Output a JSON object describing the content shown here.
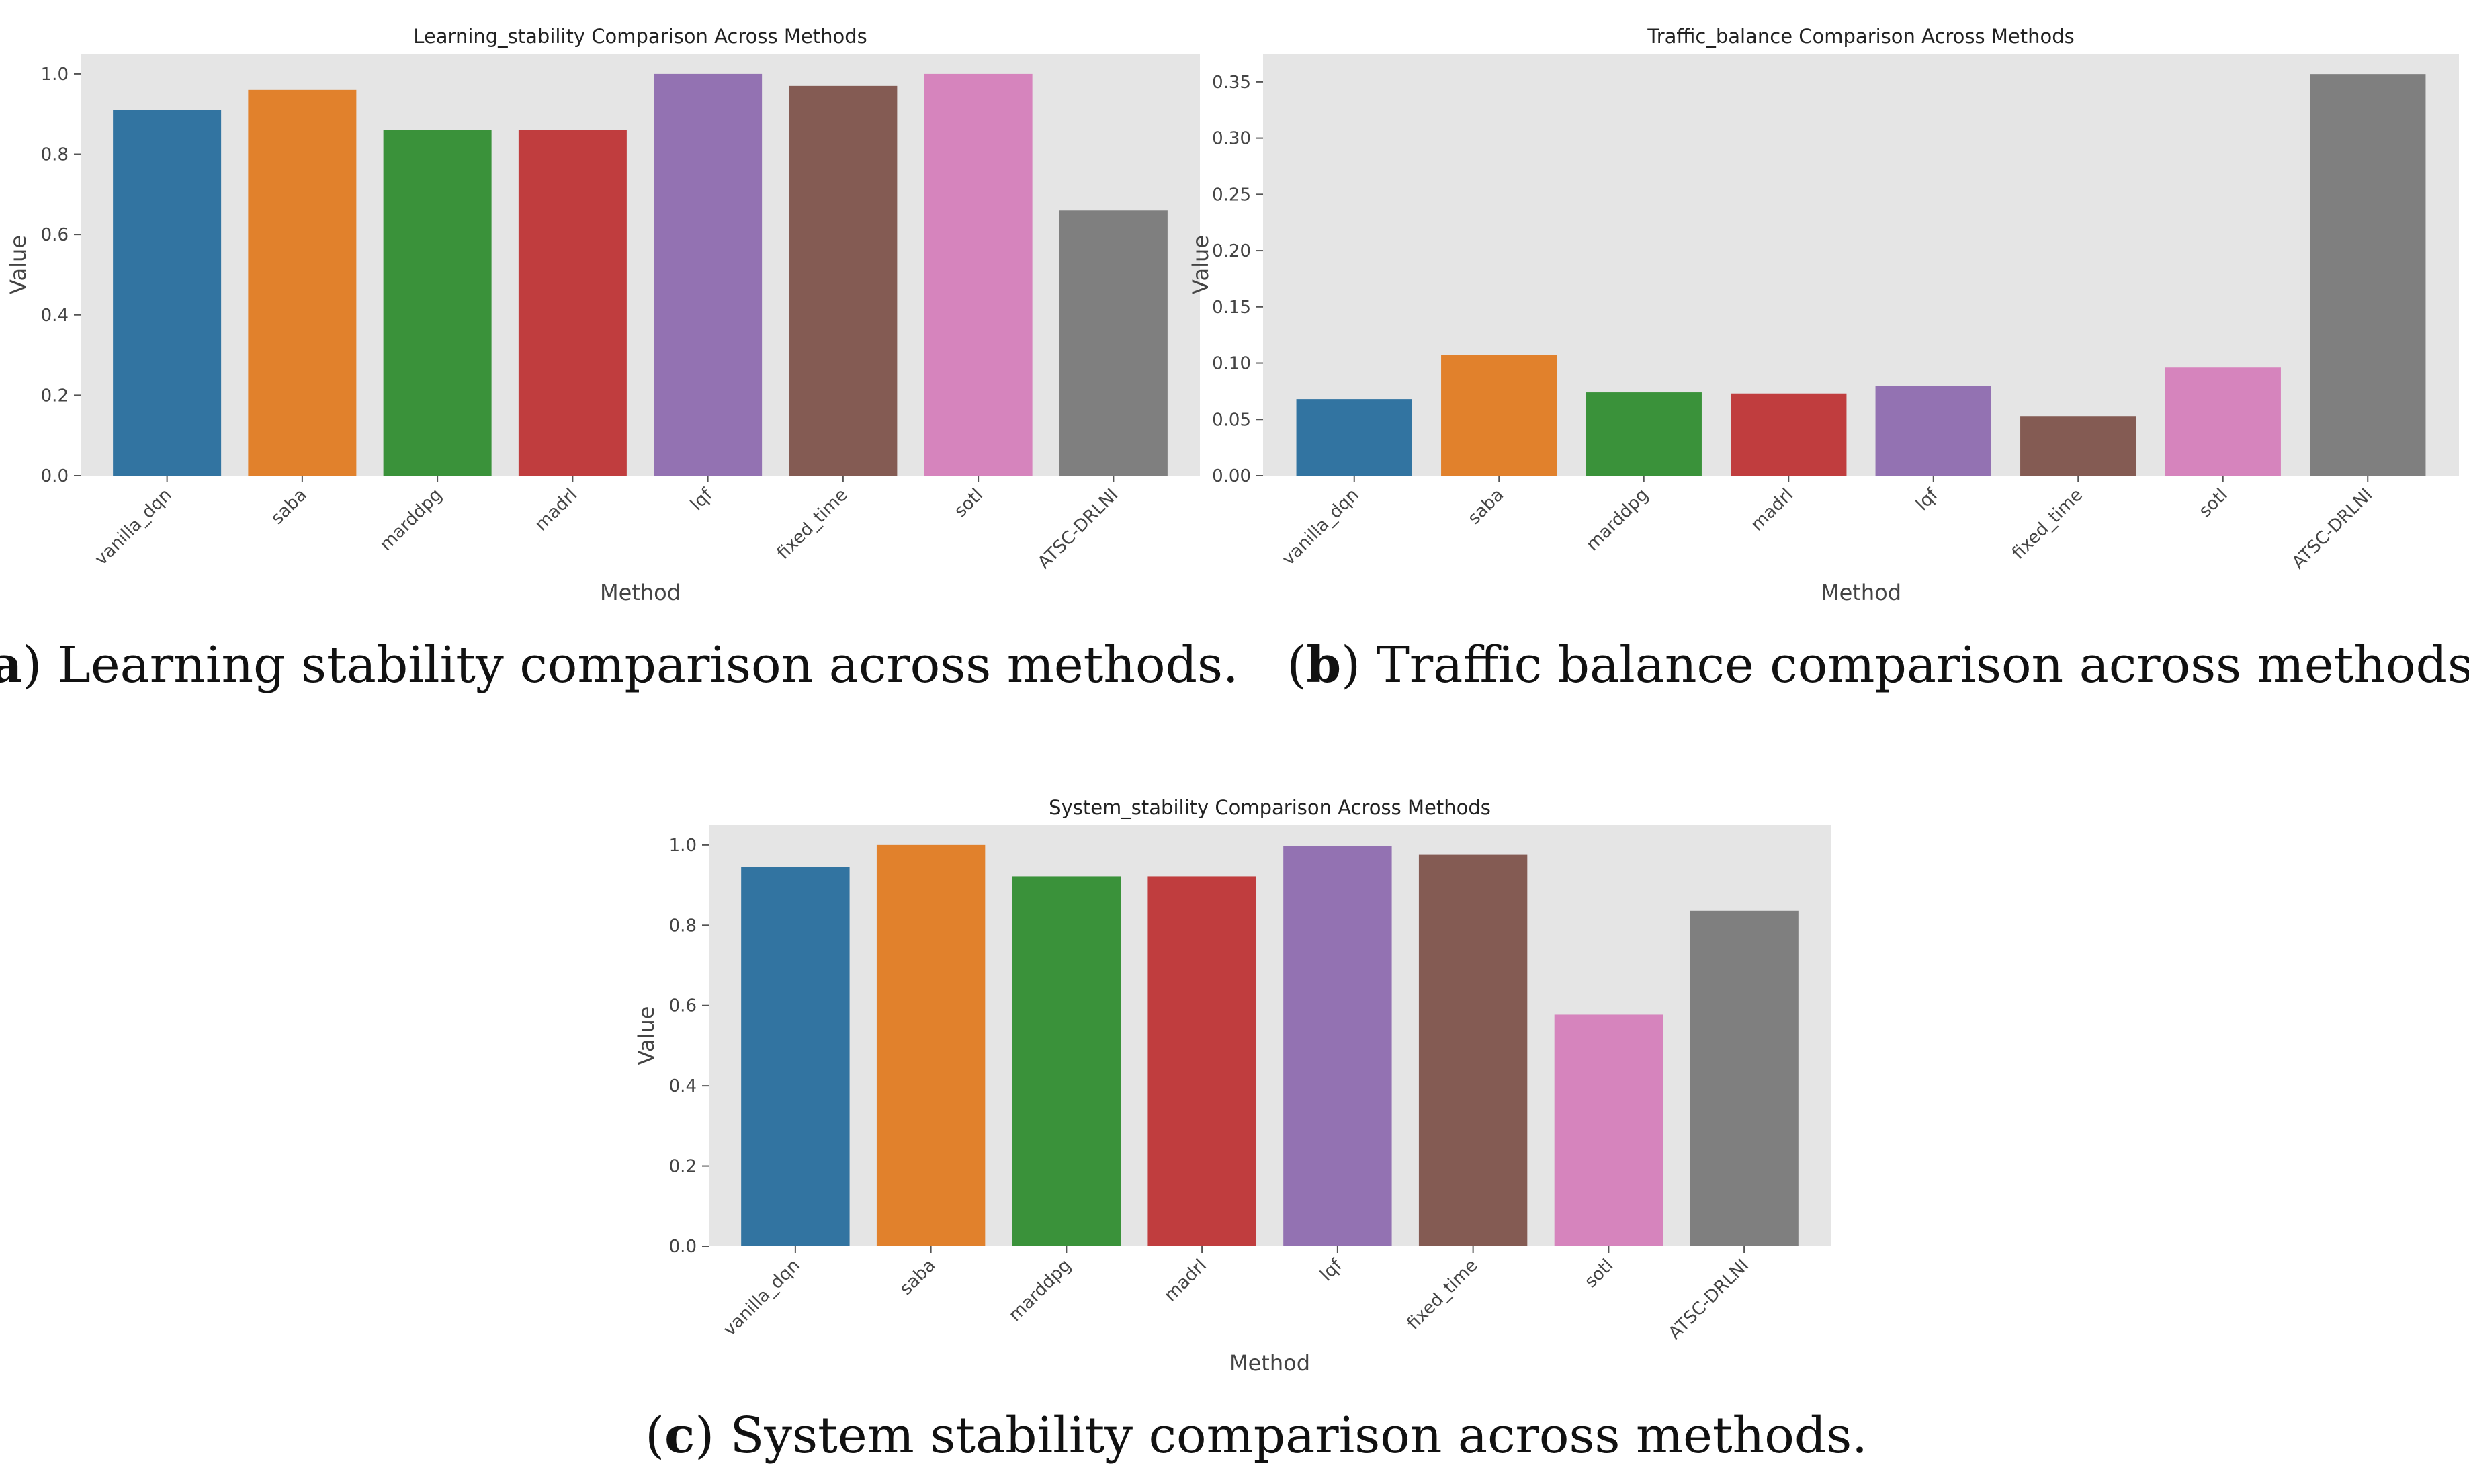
{
  "colors": [
    "#3274a1",
    "#e1812c",
    "#3a923a",
    "#c03d3e",
    "#9372b2",
    "#845b53",
    "#d684bd",
    "#7f7f7f"
  ],
  "chart_data": [
    {
      "type": "bar",
      "title": "Learning_stability Comparison Across Methods",
      "xlabel": "Method",
      "ylabel": "Value",
      "categories": [
        "vanilla_dqn",
        "saba",
        "marddpg",
        "madrl",
        "lqf",
        "fixed_time",
        "sotl",
        "ATSC-DRLNI"
      ],
      "values": [
        0.91,
        0.96,
        0.86,
        0.86,
        1.0,
        0.97,
        1.0,
        0.66
      ],
      "ylim": [
        0,
        1.05
      ],
      "yticks": [
        0.0,
        0.2,
        0.4,
        0.6,
        0.8,
        1.0
      ],
      "ytick_labels": [
        "0.0",
        "0.2",
        "0.4",
        "0.6",
        "0.8",
        "1.0"
      ],
      "grid": false,
      "caption_label": "a",
      "caption_text": "Learning stability comparison across methods."
    },
    {
      "type": "bar",
      "title": "Traffic_balance Comparison Across Methods",
      "xlabel": "Method",
      "ylabel": "Value",
      "categories": [
        "vanilla_dqn",
        "saba",
        "marddpg",
        "madrl",
        "lqf",
        "fixed_time",
        "sotl",
        "ATSC-DRLNI"
      ],
      "values": [
        0.068,
        0.107,
        0.074,
        0.073,
        0.08,
        0.053,
        0.096,
        0.357
      ],
      "ylim": [
        0,
        0.375
      ],
      "yticks": [
        0.0,
        0.05,
        0.1,
        0.15,
        0.2,
        0.25,
        0.3,
        0.35
      ],
      "ytick_labels": [
        "0.00",
        "0.05",
        "0.10",
        "0.15",
        "0.20",
        "0.25",
        "0.30",
        "0.35"
      ],
      "grid": false,
      "caption_label": "b",
      "caption_text": "Traffic balance comparison across methods."
    },
    {
      "type": "bar",
      "title": "System_stability Comparison Across Methods",
      "xlabel": "Method",
      "ylabel": "Value",
      "categories": [
        "vanilla_dqn",
        "saba",
        "marddpg",
        "madrl",
        "lqf",
        "fixed_time",
        "sotl",
        "ATSC-DRLNI"
      ],
      "values": [
        0.945,
        1.0,
        0.922,
        0.922,
        0.998,
        0.977,
        0.577,
        0.836
      ],
      "ylim": [
        0,
        1.05
      ],
      "yticks": [
        0.0,
        0.2,
        0.4,
        0.6,
        0.8,
        1.0
      ],
      "ytick_labels": [
        "0.0",
        "0.2",
        "0.4",
        "0.6",
        "0.8",
        "1.0"
      ],
      "grid": false,
      "caption_label": "c",
      "caption_text": "System stability comparison across methods."
    }
  ]
}
